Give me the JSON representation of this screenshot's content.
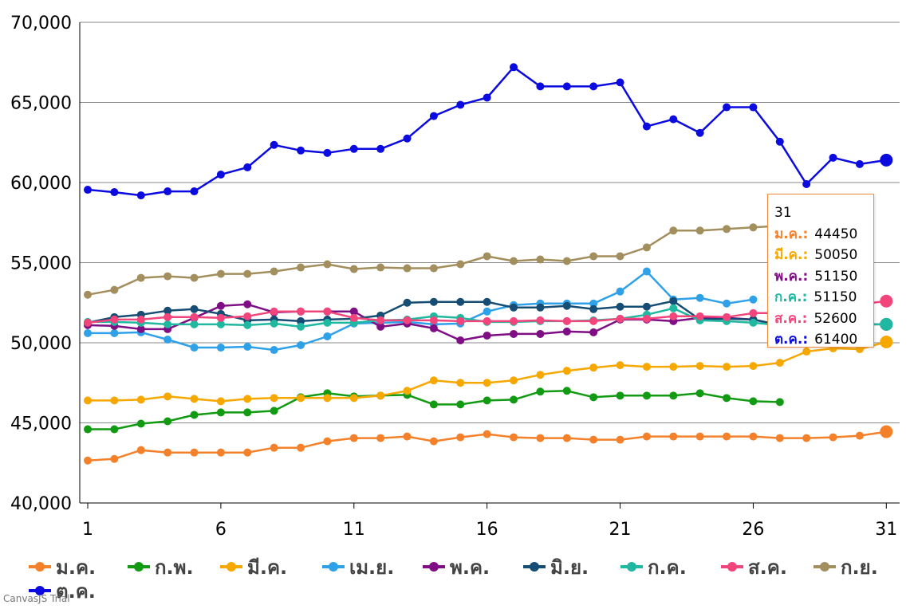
{
  "chart_data": {
    "type": "line",
    "x": [
      1,
      2,
      3,
      4,
      5,
      6,
      7,
      8,
      9,
      10,
      11,
      12,
      13,
      14,
      15,
      16,
      17,
      18,
      19,
      20,
      21,
      22,
      23,
      24,
      25,
      26,
      27,
      28,
      29,
      30,
      31
    ],
    "xticks": [
      "1",
      "6",
      "11",
      "16",
      "21",
      "26",
      "31"
    ],
    "xtick_values": [
      1,
      6,
      11,
      16,
      21,
      26,
      31
    ],
    "ylim": [
      40000,
      70000
    ],
    "yticks": [
      "40,000",
      "45,000",
      "50,000",
      "55,000",
      "60,000",
      "65,000",
      "70,000"
    ],
    "ytick_values": [
      40000,
      45000,
      50000,
      55000,
      60000,
      65000,
      70000
    ],
    "grid": true,
    "legend_position": "bottom",
    "series": [
      {
        "name": "ม.ค.",
        "color": "#F4802A",
        "values": [
          42650,
          42750,
          43300,
          43150,
          43150,
          43150,
          43150,
          43450,
          43450,
          43850,
          44050,
          44050,
          44150,
          43850,
          44100,
          44300,
          44100,
          44050,
          44050,
          43950,
          43950,
          44150,
          44150,
          44150,
          44150,
          44150,
          44050,
          44050,
          44100,
          44200,
          44450
        ]
      },
      {
        "name": "ก.พ.",
        "color": "#129B12",
        "values": [
          44600,
          44600,
          44950,
          45100,
          45500,
          45650,
          45650,
          45750,
          46600,
          46850,
          46650,
          46700,
          46750,
          46150,
          46150,
          46400,
          46450,
          46950,
          47000,
          46600,
          46700,
          46700,
          46700,
          46850,
          46550,
          46350,
          46300,
          null,
          null,
          null,
          null
        ]
      },
      {
        "name": "มี.ค.",
        "color": "#F7A800",
        "values": [
          46400,
          46400,
          46450,
          46650,
          46500,
          46350,
          46500,
          46550,
          46550,
          46550,
          46550,
          46700,
          47000,
          47650,
          47500,
          47500,
          47650,
          48000,
          48250,
          48450,
          48600,
          48500,
          48500,
          48550,
          48500,
          48550,
          48750,
          49450,
          49650,
          49600,
          50050
        ]
      },
      {
        "name": "เม.ย.",
        "color": "#2FA1E8",
        "values": [
          50600,
          50600,
          50650,
          50200,
          49700,
          49700,
          49750,
          49550,
          49850,
          50400,
          51200,
          51250,
          51300,
          51150,
          51200,
          51950,
          52350,
          52450,
          52450,
          52450,
          53200,
          54450,
          52700,
          52800,
          52450,
          52700,
          null,
          null,
          null,
          null,
          null
        ]
      },
      {
        "name": "พ.ค.",
        "color": "#7F0D84",
        "values": [
          51100,
          51050,
          50850,
          50850,
          51550,
          52300,
          52400,
          51900,
          51950,
          51950,
          51950,
          51000,
          51200,
          50900,
          50150,
          50450,
          50550,
          50550,
          50700,
          50650,
          51450,
          51450,
          51350,
          51550,
          51550,
          51450,
          51100,
          51050,
          51100,
          51150,
          51150
        ]
      },
      {
        "name": "มิ.ย.",
        "color": "#164D75",
        "values": [
          51250,
          51600,
          51750,
          52000,
          52100,
          51800,
          51400,
          51450,
          51350,
          51450,
          51500,
          51700,
          52500,
          52550,
          52550,
          52550,
          52200,
          52200,
          52300,
          52100,
          52250,
          52250,
          52600,
          51450,
          51500,
          51450,
          51100,
          null,
          null,
          null,
          null
        ]
      },
      {
        "name": "ก.ค.",
        "color": "#20B8A0",
        "values": [
          51300,
          51300,
          51250,
          51150,
          51150,
          51150,
          51100,
          51200,
          51000,
          51250,
          51250,
          51400,
          51450,
          51650,
          51550,
          51300,
          51300,
          51350,
          51350,
          51400,
          51500,
          51750,
          52150,
          51400,
          51350,
          51250,
          51100,
          51100,
          51150,
          51150,
          51150
        ]
      },
      {
        "name": "ส.ค.",
        "color": "#F2457B",
        "values": [
          51250,
          51450,
          51450,
          51600,
          51600,
          51550,
          51650,
          51950,
          51950,
          51950,
          51550,
          51400,
          51400,
          51400,
          51350,
          51350,
          51350,
          51400,
          51350,
          51350,
          51500,
          51500,
          51650,
          51650,
          51600,
          51850,
          51850,
          51950,
          52050,
          52400,
          52600
        ]
      },
      {
        "name": "ก.ย.",
        "color": "#A38F5E",
        "values": [
          53000,
          53300,
          54050,
          54150,
          54050,
          54300,
          54300,
          54450,
          54700,
          54900,
          54600,
          54700,
          54650,
          54650,
          54900,
          55400,
          55100,
          55200,
          55100,
          55400,
          55400,
          55950,
          57000,
          57000,
          57100,
          57200,
          57300,
          57450,
          58200,
          58400,
          null
        ]
      },
      {
        "name": "ต.ค.",
        "color": "#0B0BE0",
        "values": [
          59550,
          59400,
          59200,
          59450,
          59450,
          60500,
          60950,
          62350,
          62000,
          61850,
          62100,
          62100,
          62750,
          64150,
          64850,
          65300,
          67200,
          66000,
          66000,
          66000,
          66250,
          63500,
          63950,
          63100,
          64700,
          64700,
          62550,
          59900,
          61550,
          61150,
          61400
        ]
      }
    ]
  },
  "tooltip": {
    "title": "31",
    "rows": [
      {
        "name": "ม.ค.:",
        "value": "44450",
        "color": "#F4802A"
      },
      {
        "name": "มี.ค.:",
        "value": "50050",
        "color": "#F7A800"
      },
      {
        "name": "พ.ค.:",
        "value": "51150",
        "color": "#7F0D84"
      },
      {
        "name": "ก.ค.:",
        "value": "51150",
        "color": "#20B8A0"
      },
      {
        "name": "ส.ค.:",
        "value": "52600",
        "color": "#F2457B"
      },
      {
        "name": "ต.ค.:",
        "value": "61400",
        "color": "#0B0BE0"
      }
    ]
  },
  "watermark": "CanvasJS Trial"
}
